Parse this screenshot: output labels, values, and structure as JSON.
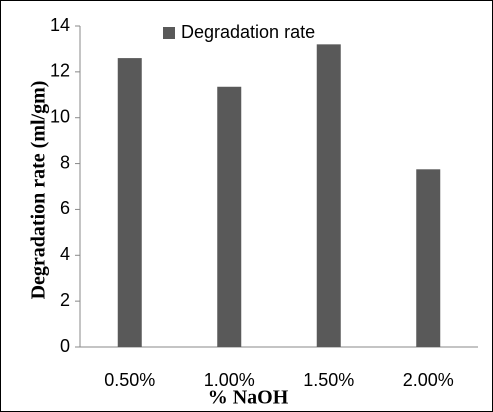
{
  "chart_data": {
    "type": "bar",
    "categories": [
      "0.50%",
      "1.00%",
      "1.50%",
      "2.00%"
    ],
    "series": [
      {
        "name": "Degradation rate",
        "color": "#595959",
        "values": [
          12.6,
          11.35,
          13.2,
          7.75
        ]
      }
    ],
    "x_label": "% NaOH",
    "y_label": "Degradation rate (ml/gm)",
    "ylim": [
      0,
      14
    ],
    "yticks": [
      0,
      2,
      4,
      6,
      8,
      10,
      12,
      14
    ],
    "grid": false,
    "legend": "top"
  }
}
